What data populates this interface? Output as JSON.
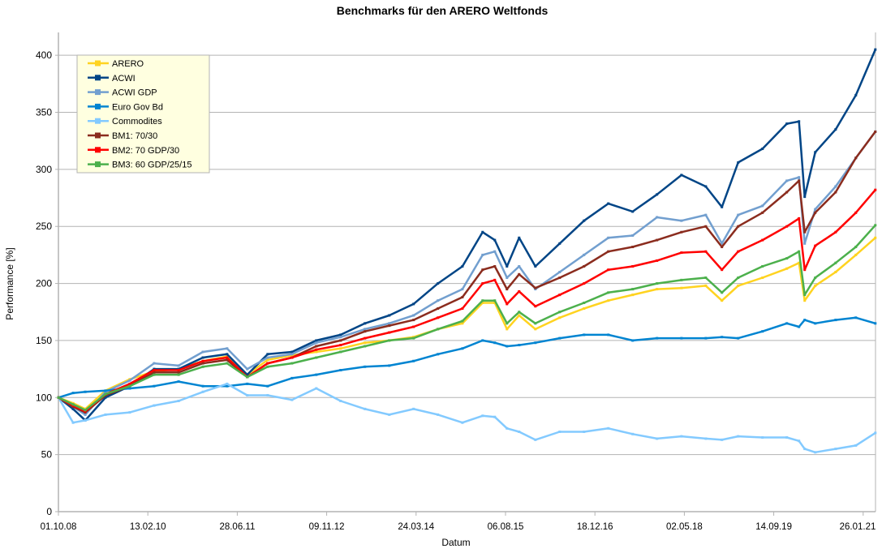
{
  "chart_data": {
    "type": "line",
    "title": "Benchmarks für den ARERO Weltfonds",
    "xlabel": "Datum",
    "ylabel": "Performance [%]",
    "ylim": [
      0,
      420
    ],
    "yticks": [
      0,
      50,
      100,
      150,
      200,
      250,
      300,
      350,
      400
    ],
    "xlim": [
      "2008-10-01",
      "2021-04-04"
    ],
    "xticks": [
      "01.10.08",
      "13.02.10",
      "28.06.11",
      "09.11.12",
      "24.03.14",
      "06.08.15",
      "18.12.16",
      "02.05.18",
      "14.09.19",
      "26.01.21"
    ],
    "grid": true,
    "legend_position": "top-left",
    "x": [
      "2008-10-01",
      "2008-12-22",
      "2009-02-28",
      "2009-06-21",
      "2009-11-04",
      "2010-03-20",
      "2010-08-04",
      "2010-12-18",
      "2011-05-02",
      "2011-08-23",
      "2011-12-15",
      "2012-04-29",
      "2012-09-12",
      "2013-01-26",
      "2013-06-11",
      "2013-10-25",
      "2014-03-10",
      "2014-07-24",
      "2014-12-08",
      "2015-03-31",
      "2015-06-07",
      "2015-08-14",
      "2015-10-21",
      "2016-01-20",
      "2016-06-04",
      "2016-10-18",
      "2017-03-03",
      "2017-07-17",
      "2017-11-30",
      "2018-04-16",
      "2018-08-30",
      "2018-11-28",
      "2019-02-27",
      "2019-07-13",
      "2019-11-26",
      "2020-02-02",
      "2020-03-05",
      "2020-05-03",
      "2020-08-25",
      "2020-12-16",
      "2021-04-04"
    ],
    "series": [
      {
        "name": "ARERO",
        "color": "#ffd320",
        "marker": "square",
        "values": [
          100,
          95,
          90,
          106,
          116,
          123,
          125,
          132,
          136,
          120,
          133,
          137,
          140,
          143,
          148,
          150,
          153,
          160,
          165,
          183,
          183,
          160,
          172,
          160,
          170,
          178,
          185,
          190,
          195,
          196,
          198,
          185,
          198,
          205,
          213,
          218,
          185,
          198,
          210,
          225,
          240
        ]
      },
      {
        "name": "ACWI",
        "color": "#004586",
        "marker": "diamond",
        "values": [
          100,
          90,
          80,
          100,
          110,
          125,
          125,
          135,
          138,
          120,
          138,
          140,
          150,
          155,
          165,
          172,
          182,
          200,
          215,
          245,
          238,
          215,
          240,
          215,
          235,
          255,
          270,
          263,
          278,
          295,
          285,
          267,
          306,
          318,
          340,
          342,
          276,
          315,
          335,
          365,
          405
        ]
      },
      {
        "name": "ACWI GDP",
        "color": "#729fcf",
        "marker": "triangle-down",
        "values": [
          100,
          92,
          85,
          105,
          115,
          130,
          128,
          140,
          143,
          125,
          135,
          138,
          148,
          153,
          160,
          165,
          172,
          185,
          195,
          225,
          228,
          205,
          215,
          195,
          210,
          225,
          240,
          242,
          258,
          255,
          260,
          235,
          260,
          268,
          290,
          293,
          235,
          265,
          285,
          310,
          333
        ]
      },
      {
        "name": "Euro Gov Bd",
        "color": "#0084d1",
        "marker": "triangle-up",
        "values": [
          100,
          104,
          105,
          106,
          108,
          110,
          114,
          110,
          110,
          112,
          110,
          117,
          120,
          124,
          127,
          128,
          132,
          138,
          143,
          150,
          148,
          145,
          146,
          148,
          152,
          155,
          155,
          150,
          152,
          152,
          152,
          153,
          152,
          158,
          165,
          162,
          168,
          165,
          168,
          170,
          165
        ]
      },
      {
        "name": "Commodites",
        "color": "#83caff",
        "marker": "triangle-right",
        "values": [
          100,
          78,
          80,
          85,
          87,
          93,
          97,
          105,
          112,
          102,
          102,
          98,
          108,
          97,
          90,
          85,
          90,
          85,
          78,
          84,
          83,
          73,
          70,
          63,
          70,
          70,
          73,
          68,
          64,
          66,
          64,
          63,
          66,
          65,
          65,
          62,
          55,
          52,
          55,
          58,
          69
        ]
      },
      {
        "name": "BM1: 70/30",
        "color": "#8b2c1e",
        "marker": "triangle-left",
        "values": [
          100,
          92,
          87,
          102,
          110,
          122,
          122,
          130,
          133,
          118,
          130,
          135,
          145,
          150,
          158,
          163,
          168,
          178,
          188,
          212,
          215,
          195,
          208,
          196,
          205,
          215,
          228,
          232,
          238,
          245,
          250,
          232,
          250,
          262,
          280,
          290,
          245,
          262,
          280,
          310,
          333
        ]
      },
      {
        "name": "BM2: 70 GDP/30",
        "color": "#ff0000",
        "marker": "bowtie",
        "values": [
          100,
          93,
          88,
          103,
          112,
          124,
          124,
          132,
          135,
          118,
          130,
          135,
          142,
          146,
          152,
          157,
          162,
          170,
          178,
          200,
          203,
          182,
          193,
          180,
          190,
          200,
          212,
          215,
          220,
          227,
          228,
          212,
          228,
          238,
          250,
          257,
          212,
          233,
          245,
          262,
          282
        ]
      },
      {
        "name": "BM3: 60 GDP/25/15",
        "color": "#4cb04c",
        "marker": "hourglass",
        "values": [
          100,
          94,
          89,
          103,
          110,
          120,
          120,
          127,
          130,
          118,
          127,
          130,
          135,
          140,
          145,
          150,
          152,
          160,
          167,
          185,
          185,
          165,
          175,
          165,
          175,
          183,
          192,
          195,
          200,
          203,
          205,
          192,
          205,
          215,
          222,
          228,
          190,
          205,
          218,
          232,
          251
        ]
      }
    ]
  }
}
